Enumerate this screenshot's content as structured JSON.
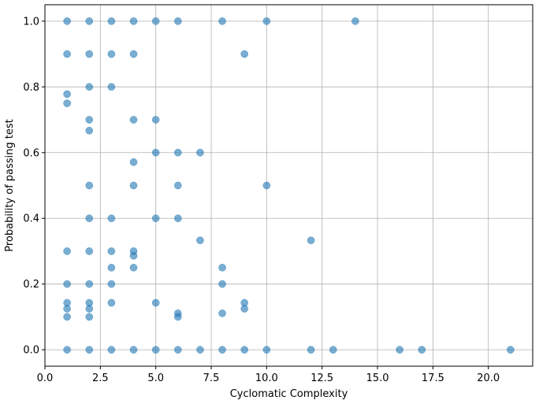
{
  "chart_data": {
    "type": "scatter",
    "title": "",
    "xlabel": "Cyclomatic Complexity",
    "ylabel": "Probability of passing test",
    "xlim": [
      0,
      22
    ],
    "ylim": [
      -0.05,
      1.05
    ],
    "xticks": [
      "0.0",
      "2.5",
      "5.0",
      "7.5",
      "10.0",
      "12.5",
      "15.0",
      "17.5",
      "20.0"
    ],
    "yticks": [
      "0.0",
      "0.2",
      "0.4",
      "0.6",
      "0.8",
      "1.0"
    ],
    "grid": true,
    "legend": "none",
    "point_color": "#1f77b4",
    "point_alpha": 0.6,
    "series": [
      {
        "points": [
          [
            1,
            1.0
          ],
          [
            2,
            1.0
          ],
          [
            3,
            1.0
          ],
          [
            4,
            1.0
          ],
          [
            5,
            1.0
          ],
          [
            6,
            1.0
          ],
          [
            8,
            1.0
          ],
          [
            10,
            1.0
          ],
          [
            14,
            1.0
          ],
          [
            1,
            0.9
          ],
          [
            2,
            0.9
          ],
          [
            3,
            0.9
          ],
          [
            4,
            0.9
          ],
          [
            9,
            0.9
          ],
          [
            2,
            0.8
          ],
          [
            3,
            0.8
          ],
          [
            1,
            0.778
          ],
          [
            1,
            0.75
          ],
          [
            2,
            0.7
          ],
          [
            4,
            0.7
          ],
          [
            5,
            0.7
          ],
          [
            2,
            0.667
          ],
          [
            5,
            0.6
          ],
          [
            6,
            0.6
          ],
          [
            7,
            0.6
          ],
          [
            4,
            0.571
          ],
          [
            2,
            0.5
          ],
          [
            4,
            0.5
          ],
          [
            6,
            0.5
          ],
          [
            10,
            0.5
          ],
          [
            2,
            0.4
          ],
          [
            3,
            0.4
          ],
          [
            5,
            0.4
          ],
          [
            6,
            0.4
          ],
          [
            7,
            0.333
          ],
          [
            12,
            0.333
          ],
          [
            1,
            0.3
          ],
          [
            2,
            0.3
          ],
          [
            3,
            0.3
          ],
          [
            4,
            0.3
          ],
          [
            4,
            0.286
          ],
          [
            3,
            0.25
          ],
          [
            4,
            0.25
          ],
          [
            8,
            0.25
          ],
          [
            1,
            0.2
          ],
          [
            2,
            0.2
          ],
          [
            3,
            0.2
          ],
          [
            8,
            0.2
          ],
          [
            1,
            0.143
          ],
          [
            2,
            0.143
          ],
          [
            3,
            0.143
          ],
          [
            5,
            0.143
          ],
          [
            9,
            0.143
          ],
          [
            1,
            0.125
          ],
          [
            2,
            0.125
          ],
          [
            9,
            0.125
          ],
          [
            6,
            0.111
          ],
          [
            8,
            0.111
          ],
          [
            1,
            0.1
          ],
          [
            2,
            0.1
          ],
          [
            6,
            0.1
          ],
          [
            1,
            0.0
          ],
          [
            2,
            0.0
          ],
          [
            3,
            0.0
          ],
          [
            4,
            0.0
          ],
          [
            5,
            0.0
          ],
          [
            6,
            0.0
          ],
          [
            7,
            0.0
          ],
          [
            8,
            0.0
          ],
          [
            9,
            0.0
          ],
          [
            10,
            0.0
          ],
          [
            12,
            0.0
          ],
          [
            13,
            0.0
          ],
          [
            16,
            0.0
          ],
          [
            17,
            0.0
          ],
          [
            21,
            0.0
          ]
        ]
      }
    ]
  }
}
